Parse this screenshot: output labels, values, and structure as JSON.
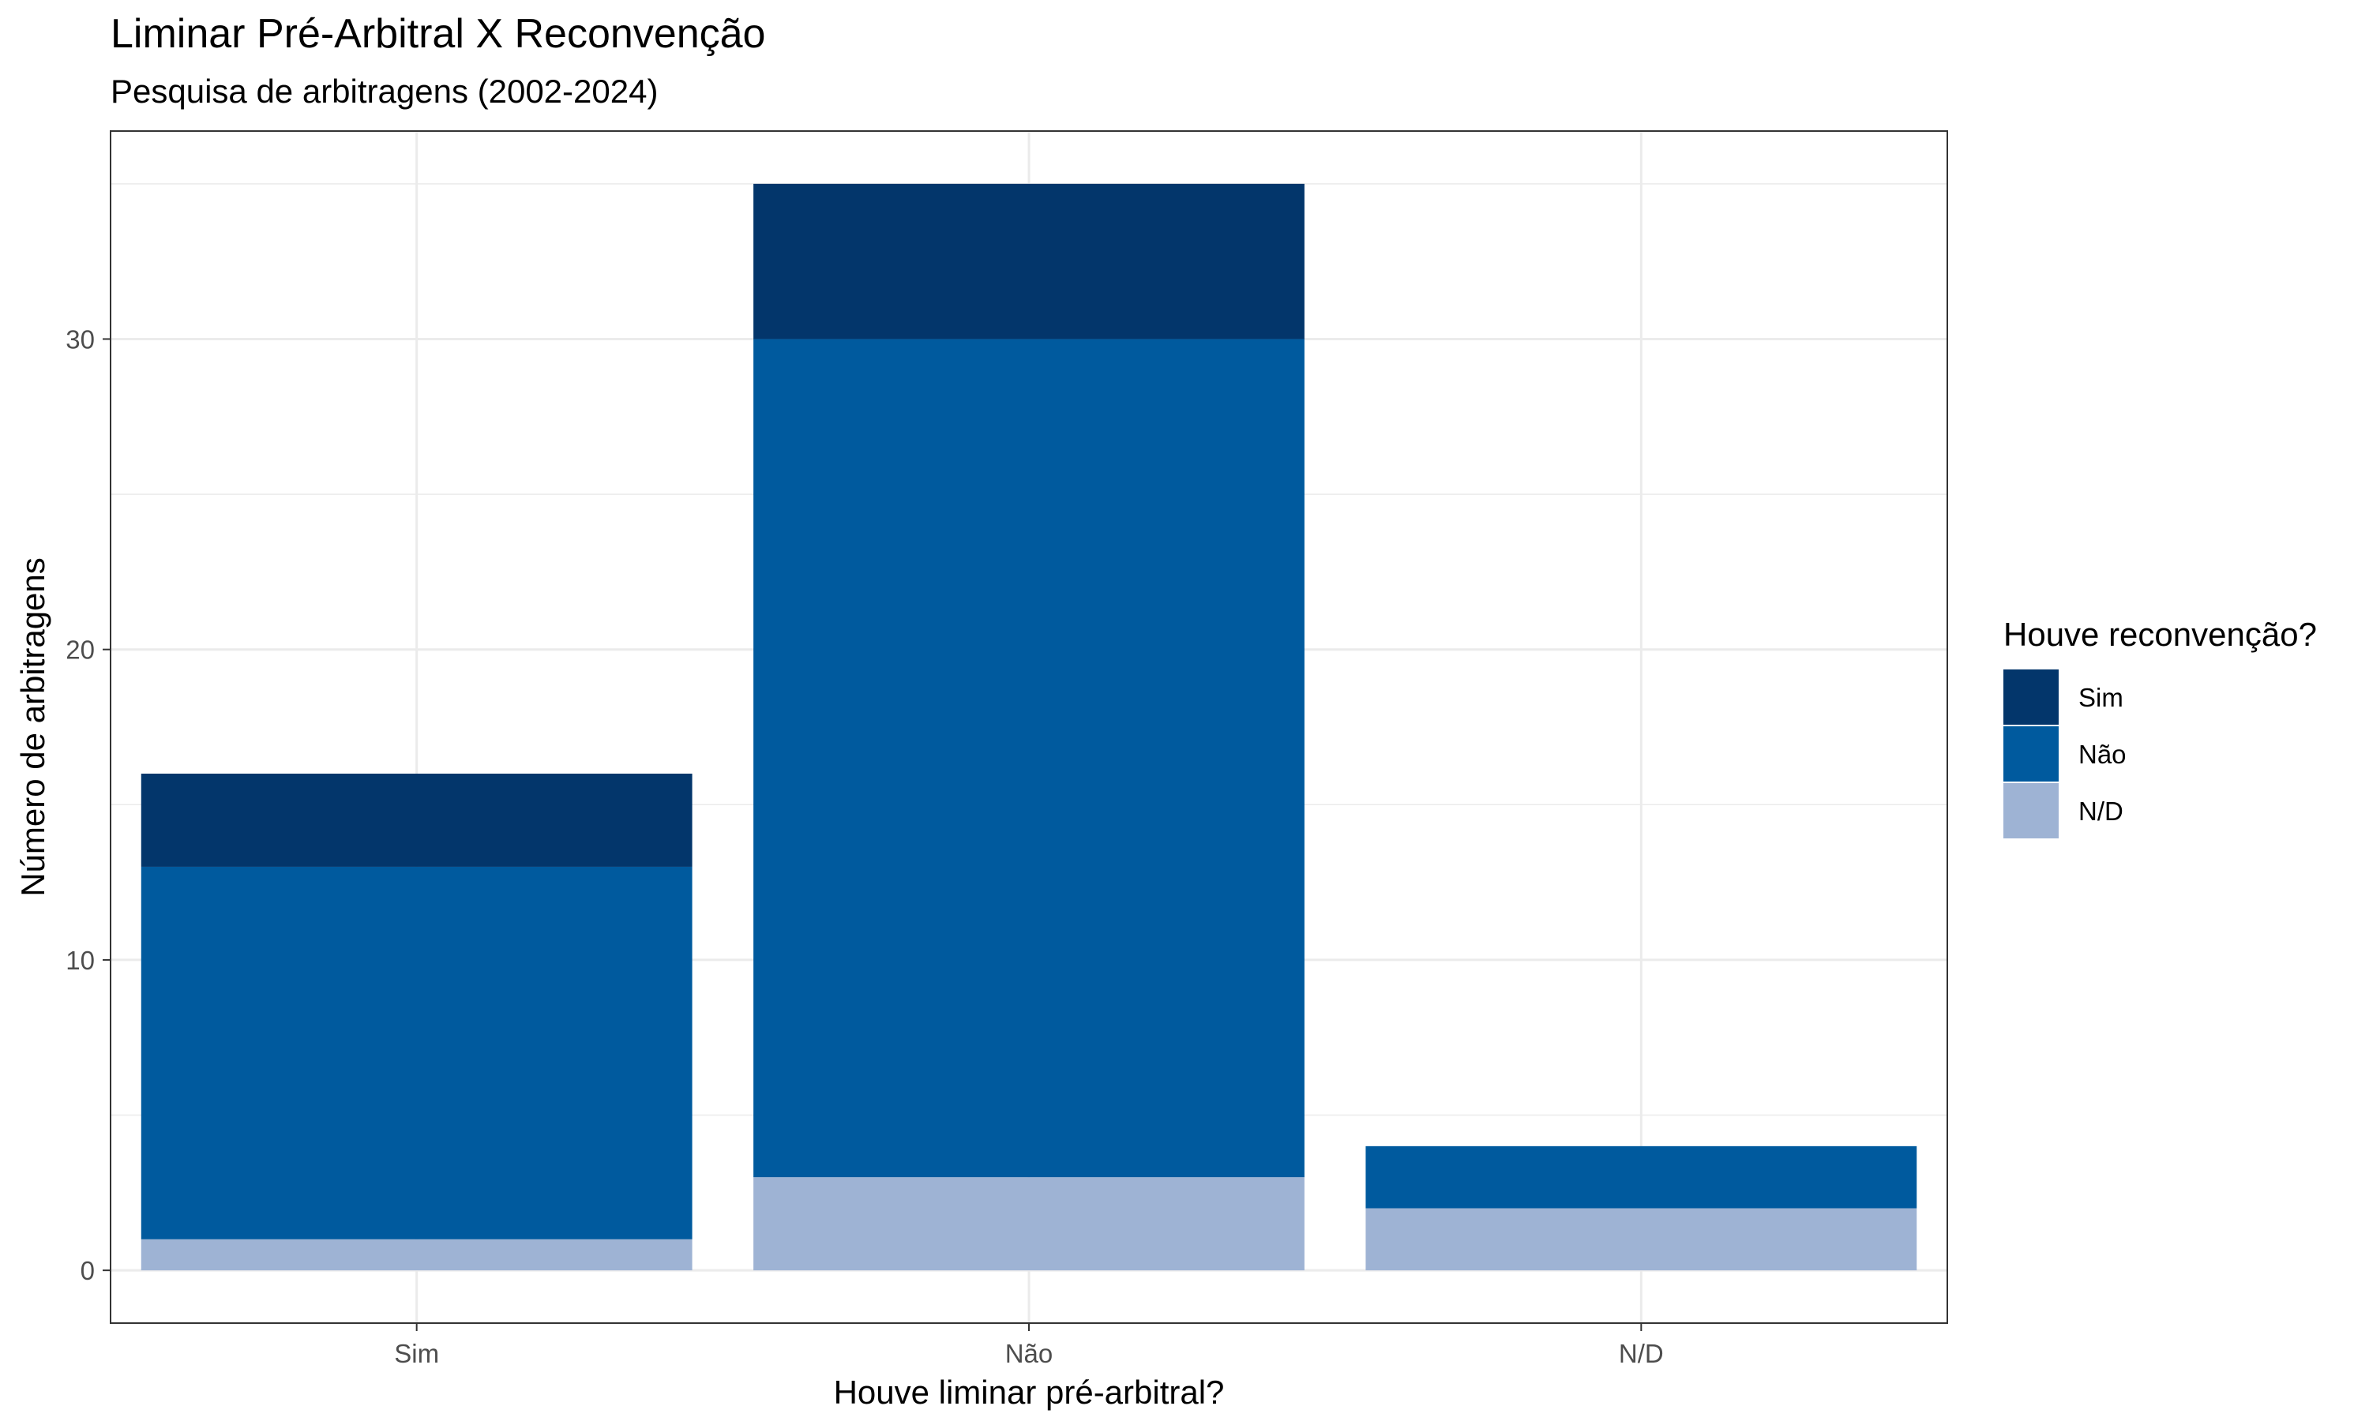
{
  "chart_data": {
    "type": "bar",
    "stacked": true,
    "title": "Liminar Pré-Arbitral X Reconvenção",
    "subtitle": "Pesquisa de arbitragens (2002-2024)",
    "xlabel": "Houve liminar pré-arbitral?",
    "ylabel": "Número de arbitragens",
    "categories": [
      "Sim",
      "Não",
      "N/D"
    ],
    "series": [
      {
        "name": "N/D",
        "color": "#9eb3d4",
        "values": [
          1,
          3,
          2
        ]
      },
      {
        "name": "Não",
        "color": "#005a9e",
        "values": [
          12,
          27,
          2
        ]
      },
      {
        "name": "Sim",
        "color": "#03366b",
        "values": [
          3,
          5,
          0
        ]
      }
    ],
    "ylim": [
      -1.7,
      36.7
    ],
    "yticks": [
      0,
      10,
      20,
      30
    ],
    "ytick_labels": [
      "0",
      "10",
      "20",
      "30"
    ],
    "grid": true,
    "legend": {
      "title": "Houve reconvenção?",
      "position": "right",
      "entries": [
        {
          "label": "Sim",
          "color": "#03366b"
        },
        {
          "label": "Não",
          "color": "#005a9e"
        },
        {
          "label": "N/D",
          "color": "#9eb3d4"
        }
      ]
    }
  }
}
